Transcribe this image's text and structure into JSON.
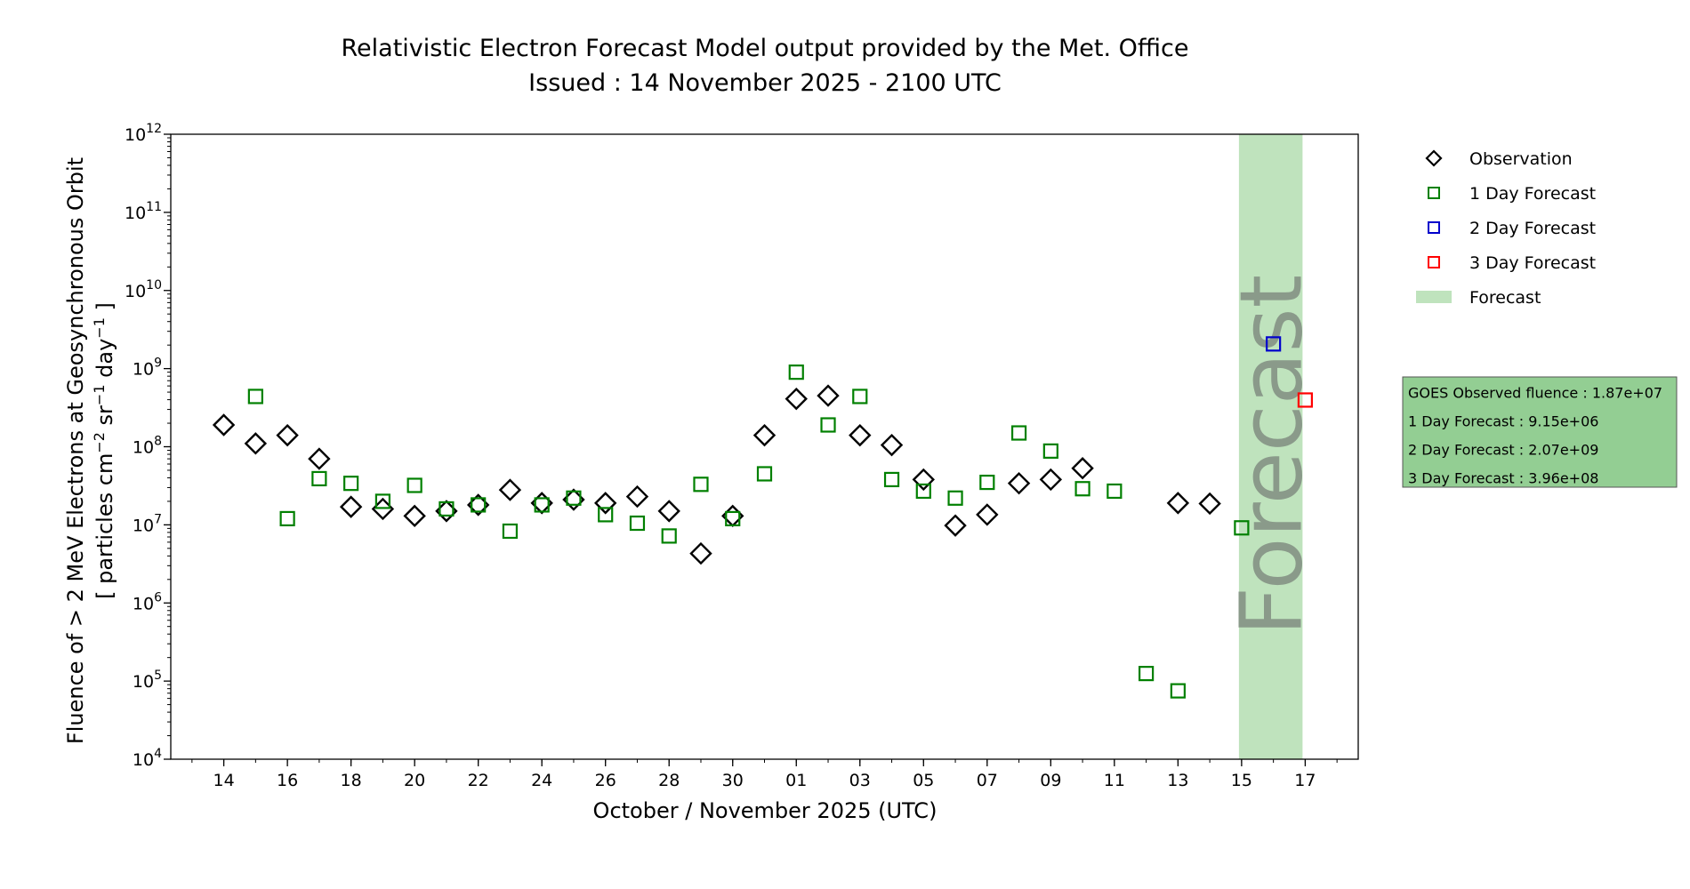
{
  "chart_data": {
    "type": "scatter",
    "title": "Relativistic Electron Forecast Model output provided by the Met. Office",
    "subtitle": "Issued : 14 November 2025 - 2100 UTC",
    "xlabel": "October / November 2025 (UTC)",
    "ylabel": "Fluence of > 2 MeV Electrons at Geosynchronous Orbit",
    "ylabel_units": "[ particles cm",
    "y_scale": "log",
    "ylim": [
      "1e4",
      "1e12"
    ],
    "xlim": [
      "2025-10-12T08:00",
      "2025-11-18T16:00"
    ],
    "grid": false,
    "legend_position": "right",
    "x_ticks": [
      "14",
      "16",
      "18",
      "20",
      "22",
      "24",
      "26",
      "28",
      "30",
      "01",
      "03",
      "05",
      "07",
      "09",
      "11",
      "13",
      "15",
      "17"
    ],
    "x_tick_dates": [
      "2025-10-14",
      "2025-10-16",
      "2025-10-18",
      "2025-10-20",
      "2025-10-22",
      "2025-10-24",
      "2025-10-26",
      "2025-10-28",
      "2025-10-30",
      "2025-11-01",
      "2025-11-03",
      "2025-11-05",
      "2025-11-07",
      "2025-11-09",
      "2025-11-11",
      "2025-11-13",
      "2025-11-15",
      "2025-11-17"
    ],
    "y_ticks": [
      {
        "base": "10",
        "exp": "4"
      },
      {
        "base": "10",
        "exp": "5"
      },
      {
        "base": "10",
        "exp": "6"
      },
      {
        "base": "10",
        "exp": "7"
      },
      {
        "base": "10",
        "exp": "8"
      },
      {
        "base": "10",
        "exp": "9"
      },
      {
        "base": "10",
        "exp": "10"
      },
      {
        "base": "10",
        "exp": "11"
      },
      {
        "base": "10",
        "exp": "12"
      }
    ],
    "forecast_band": {
      "label": "Forecast",
      "x_start": "2025-11-15",
      "x_end": "2025-11-17",
      "color": "#bfe3bd",
      "text_color": "#8a9a8a"
    },
    "series": [
      {
        "name": "Observation",
        "marker": "diamond",
        "color": "#000000",
        "points": [
          {
            "x": "2025-10-14",
            "y": 190000000.0
          },
          {
            "x": "2025-10-15",
            "y": 110000000.0
          },
          {
            "x": "2025-10-16",
            "y": 140000000.0
          },
          {
            "x": "2025-10-17",
            "y": 70000000.0
          },
          {
            "x": "2025-10-18",
            "y": 17000000.0
          },
          {
            "x": "2025-10-19",
            "y": 16000000.0
          },
          {
            "x": "2025-10-20",
            "y": 13000000.0
          },
          {
            "x": "2025-10-21",
            "y": 15000000.0
          },
          {
            "x": "2025-10-22",
            "y": 18000000.0
          },
          {
            "x": "2025-10-23",
            "y": 28000000.0
          },
          {
            "x": "2025-10-24",
            "y": 19000000.0
          },
          {
            "x": "2025-10-25",
            "y": 21000000.0
          },
          {
            "x": "2025-10-26",
            "y": 19000000.0
          },
          {
            "x": "2025-10-27",
            "y": 23000000.0
          },
          {
            "x": "2025-10-28",
            "y": 15000000.0
          },
          {
            "x": "2025-10-29",
            "y": 4300000.0
          },
          {
            "x": "2025-10-30",
            "y": 13000000.0
          },
          {
            "x": "2025-10-31",
            "y": 140000000.0
          },
          {
            "x": "2025-11-01",
            "y": 410000000.0
          },
          {
            "x": "2025-11-02",
            "y": 450000000.0
          },
          {
            "x": "2025-11-03",
            "y": 140000000.0
          },
          {
            "x": "2025-11-04",
            "y": 105000000.0
          },
          {
            "x": "2025-11-05",
            "y": 38000000.0
          },
          {
            "x": "2025-11-06",
            "y": 9800000.0
          },
          {
            "x": "2025-11-07",
            "y": 13500000.0
          },
          {
            "x": "2025-11-08",
            "y": 34000000.0
          },
          {
            "x": "2025-11-09",
            "y": 38000000.0
          },
          {
            "x": "2025-11-10",
            "y": 53000000.0
          },
          {
            "x": "2025-11-13",
            "y": 19000000.0
          },
          {
            "x": "2025-11-14",
            "y": 18700000.0
          }
        ]
      },
      {
        "name": "1 Day Forecast",
        "marker": "square",
        "color": "#008000",
        "points": [
          {
            "x": "2025-10-15",
            "y": 440000000.0
          },
          {
            "x": "2025-10-16",
            "y": 12000000.0
          },
          {
            "x": "2025-10-17",
            "y": 39000000.0
          },
          {
            "x": "2025-10-18",
            "y": 34000000.0
          },
          {
            "x": "2025-10-19",
            "y": 20000000.0
          },
          {
            "x": "2025-10-20",
            "y": 32000000.0
          },
          {
            "x": "2025-10-21",
            "y": 16000000.0
          },
          {
            "x": "2025-10-22",
            "y": 18000000.0
          },
          {
            "x": "2025-10-23",
            "y": 8300000.0
          },
          {
            "x": "2025-10-24",
            "y": 18000000.0
          },
          {
            "x": "2025-10-25",
            "y": 22000000.0
          },
          {
            "x": "2025-10-26",
            "y": 13500000.0
          },
          {
            "x": "2025-10-27",
            "y": 10500000.0
          },
          {
            "x": "2025-10-28",
            "y": 7200000.0
          },
          {
            "x": "2025-10-29",
            "y": 33000000.0
          },
          {
            "x": "2025-10-30",
            "y": 12000000.0
          },
          {
            "x": "2025-10-31",
            "y": 45000000.0
          },
          {
            "x": "2025-11-01",
            "y": 900000000.0
          },
          {
            "x": "2025-11-02",
            "y": 190000000.0
          },
          {
            "x": "2025-11-03",
            "y": 440000000.0
          },
          {
            "x": "2025-11-04",
            "y": 38000000.0
          },
          {
            "x": "2025-11-05",
            "y": 27000000.0
          },
          {
            "x": "2025-11-06",
            "y": 22000000.0
          },
          {
            "x": "2025-11-07",
            "y": 35000000.0
          },
          {
            "x": "2025-11-08",
            "y": 150000000.0
          },
          {
            "x": "2025-11-09",
            "y": 88000000.0
          },
          {
            "x": "2025-11-10",
            "y": 29000000.0
          },
          {
            "x": "2025-11-11",
            "y": 27000000.0
          },
          {
            "x": "2025-11-12",
            "y": 125000.0
          },
          {
            "x": "2025-11-13",
            "y": 75000.0
          },
          {
            "x": "2025-11-15",
            "y": 9150000.0
          }
        ]
      },
      {
        "name": "2 Day Forecast",
        "marker": "square",
        "color": "#0000cc",
        "points": [
          {
            "x": "2025-11-16",
            "y": 2070000000.0
          }
        ]
      },
      {
        "name": "3 Day Forecast",
        "marker": "square",
        "color": "#ff0000",
        "points": [
          {
            "x": "2025-11-17",
            "y": 396000000.0
          }
        ]
      }
    ],
    "info_box": {
      "background": "#93ce93",
      "lines": [
        "GOES Observed fluence : 1.87e+07",
        "1 Day Forecast : 9.15e+06",
        "2 Day Forecast : 2.07e+09",
        "3 Day Forecast : 3.96e+08"
      ]
    }
  }
}
